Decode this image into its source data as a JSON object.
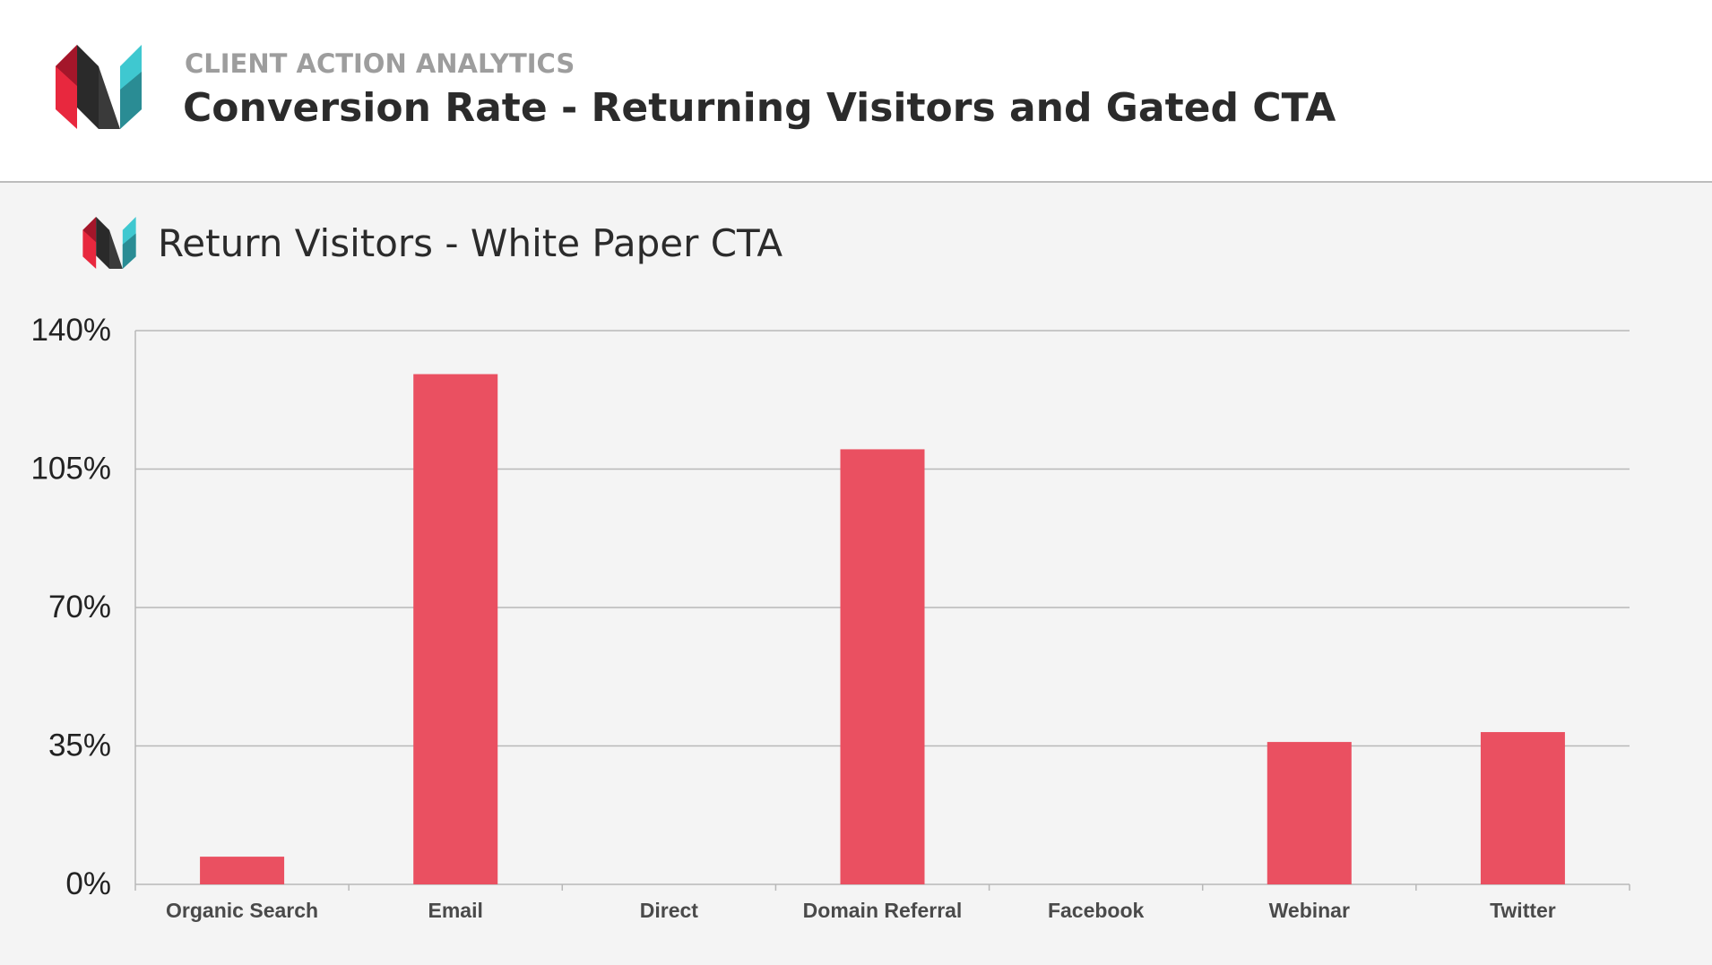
{
  "header": {
    "kicker": "CLIENT ACTION ANALYTICS",
    "title": "Conversion Rate - Returning Visitors and Gated CTA",
    "logo_icon": "brand-logo-icon"
  },
  "colors": {
    "bar": "#ea5061",
    "grid": "#b8b8b8",
    "axis_text": "#222222",
    "category_text": "#4a4a4a",
    "panel_bg": "#f4f4f4",
    "logo_red": "#e8283e",
    "logo_darkred": "#a4162a",
    "logo_dark": "#2a2a2a",
    "logo_teal": "#3fc8d0",
    "logo_darkteal": "#2a8c94"
  },
  "chart_data": {
    "type": "bar",
    "title": "Return Visitors - White Paper CTA",
    "categories": [
      "Organic Search",
      "Email",
      "Direct",
      "Domain Referral",
      "Facebook",
      "Webinar",
      "Twitter"
    ],
    "values": [
      7,
      129,
      0,
      110,
      0,
      36,
      38.5
    ],
    "ylim": [
      0,
      140
    ],
    "yticks": [
      0,
      35,
      70,
      105,
      140
    ],
    "ytick_labels": [
      "0%",
      "35%",
      "70%",
      "105%",
      "140%"
    ],
    "xlabel": "",
    "ylabel": "",
    "grid": true,
    "legend": "none"
  }
}
